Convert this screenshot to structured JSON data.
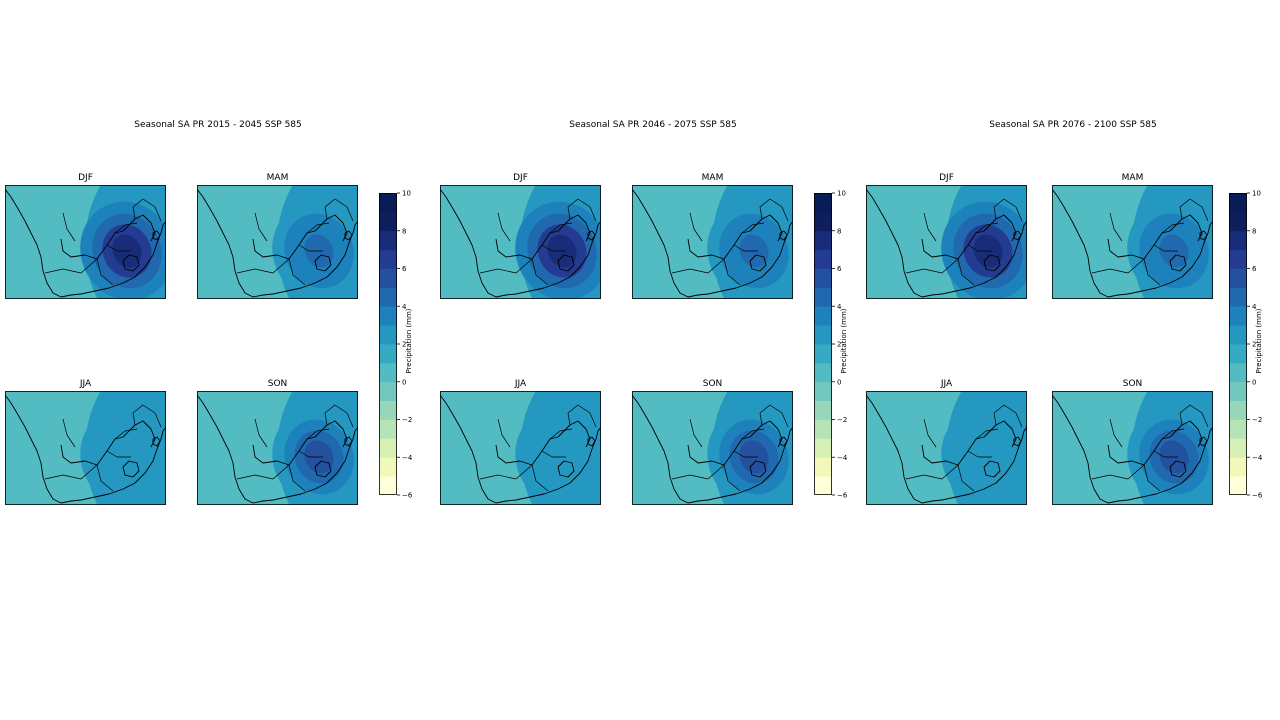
{
  "figures": [
    {
      "title": "Seasonal SA PR 2015 - 2045 SSP 585",
      "panels": [
        {
          "season": "DJF",
          "intensity": 4
        },
        {
          "season": "MAM",
          "intensity": 1.5
        },
        {
          "season": "JJA",
          "intensity": 0.5
        },
        {
          "season": "SON",
          "intensity": 2.5
        }
      ]
    },
    {
      "title": "Seasonal SA PR 2046 - 2075 SSP 585",
      "panels": [
        {
          "season": "DJF",
          "intensity": 4
        },
        {
          "season": "MAM",
          "intensity": 1.5
        },
        {
          "season": "JJA",
          "intensity": 0.5
        },
        {
          "season": "SON",
          "intensity": 2.5
        }
      ]
    },
    {
      "title": "Seasonal SA PR 2076 - 2100 SSP 585",
      "panels": [
        {
          "season": "DJF",
          "intensity": 4
        },
        {
          "season": "MAM",
          "intensity": 1.5
        },
        {
          "season": "JJA",
          "intensity": 0.5
        },
        {
          "season": "SON",
          "intensity": 2.5
        }
      ]
    }
  ],
  "colorbar": {
    "label": "Precipitation (mm)",
    "min": -6,
    "max": 10,
    "ticks": [
      10,
      8,
      6,
      4,
      2,
      0,
      -2,
      -4,
      -6
    ],
    "tick_labels": [
      "10",
      "8",
      "6",
      "4",
      "2",
      "0",
      "−2",
      "−4",
      "−6"
    ],
    "colors": [
      "#ffffd9",
      "#f1f9ba",
      "#d6efb3",
      "#b6e3b6",
      "#97d6b9",
      "#73c8bd",
      "#52bcc2",
      "#36aac3",
      "#2498c1",
      "#1d82bb",
      "#2069ae",
      "#23519f",
      "#233c92",
      "#182c7a",
      "#0e1f5b",
      "#081d58"
    ]
  }
}
